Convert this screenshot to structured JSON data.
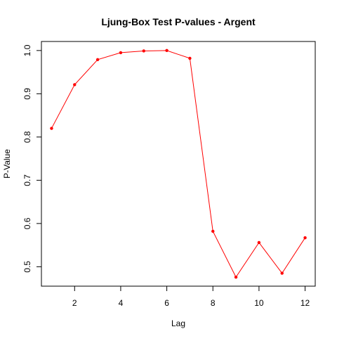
{
  "chart_data": {
    "type": "line",
    "title": "Ljung-Box Test P-values - Argent",
    "xlabel": "Lag",
    "ylabel": "P-Value",
    "x": [
      1,
      2,
      3,
      4,
      5,
      6,
      7,
      8,
      9,
      10,
      11,
      12
    ],
    "series": [
      {
        "values": [
          0.82,
          0.921,
          0.979,
          0.995,
          0.999,
          1.0,
          0.982,
          0.582,
          0.476,
          0.556,
          0.485,
          0.567
        ],
        "color": "#ff0000"
      }
    ],
    "xlim": [
      0.56,
      12.44
    ],
    "ylim": [
      0.4551,
      1.0209
    ],
    "x_ticks": [
      2,
      4,
      6,
      8,
      10,
      12
    ],
    "y_ticks": [
      0.5,
      0.6,
      0.7,
      0.8,
      0.9,
      1.0
    ],
    "x_tick_labels": [
      "2",
      "4",
      "6",
      "8",
      "10",
      "12"
    ],
    "y_tick_labels": [
      "0.5",
      "0.6",
      "0.7",
      "0.8",
      "0.9",
      "1.0"
    ],
    "grid": false,
    "legend": "none"
  }
}
